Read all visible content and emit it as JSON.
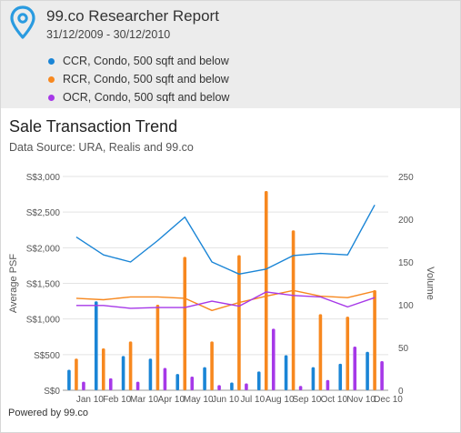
{
  "header": {
    "title": "99.co Researcher Report",
    "date_range": "31/12/2009 - 30/12/2010",
    "legend": [
      {
        "label": "CCR, Condo, 500 sqft and below",
        "color": "#1a85d6"
      },
      {
        "label": "RCR, Condo, 500 sqft and below",
        "color": "#f7881f"
      },
      {
        "label": "OCR, Condo, 500 sqft and below",
        "color": "#a638e8"
      }
    ]
  },
  "chart": {
    "title": "Sale Transaction Trend",
    "source": "Data Source: URA, Realis and 99.co"
  },
  "footer": {
    "text": "Powered by 99.co"
  },
  "chart_data": {
    "type": "bar+line",
    "categories": [
      "Jan 10",
      "Feb 10",
      "Mar 10",
      "Apr 10",
      "May 10",
      "Jun 10",
      "Jul 10",
      "Aug 10",
      "Sep 10",
      "Oct 10",
      "Nov 10",
      "Dec 10"
    ],
    "ylabel_left": "Average PSF",
    "ylabel_right": "Volume",
    "left_ticks": [
      "S$0",
      "S$500",
      "S$1,000",
      "S$1,500",
      "S$2,000",
      "S$2,500",
      "S$3,000"
    ],
    "right_ticks": [
      "0",
      "50",
      "100",
      "150",
      "200",
      "250"
    ],
    "ylim_left": [
      0,
      3000
    ],
    "ylim_right": [
      0,
      250
    ],
    "psf_lines": [
      {
        "name": "CCR",
        "color": "#1a85d6",
        "values": [
          2150,
          1900,
          1800,
          2100,
          2430,
          1800,
          1630,
          1700,
          1890,
          1920,
          1900,
          2600
        ]
      },
      {
        "name": "RCR",
        "color": "#f7881f",
        "values": [
          1290,
          1270,
          1310,
          1310,
          1290,
          1120,
          1230,
          1320,
          1400,
          1320,
          1300,
          1390
        ]
      },
      {
        "name": "OCR",
        "color": "#a638e8",
        "values": [
          1190,
          1190,
          1150,
          1160,
          1160,
          1250,
          1180,
          1380,
          1330,
          1310,
          1170,
          1300
        ]
      }
    ],
    "volume_bars": [
      {
        "name": "CCR",
        "color": "#1a85d6",
        "values": [
          24,
          104,
          40,
          37,
          19,
          27,
          9,
          22,
          41,
          27,
          31,
          45
        ]
      },
      {
        "name": "RCR",
        "color": "#f7881f",
        "values": [
          37,
          49,
          57,
          100,
          156,
          57,
          158,
          233,
          187,
          89,
          86,
          117
        ]
      },
      {
        "name": "OCR",
        "color": "#a638e8",
        "values": [
          10,
          14,
          10,
          26,
          16,
          6,
          8,
          72,
          5,
          12,
          51,
          34
        ]
      }
    ]
  }
}
